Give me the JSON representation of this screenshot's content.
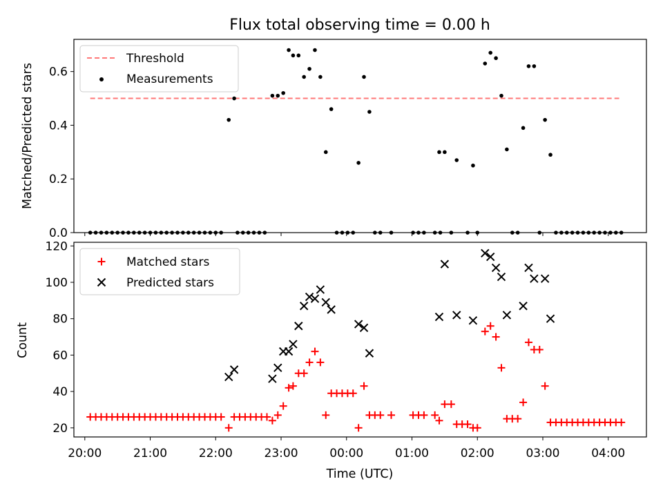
{
  "chart_data": [
    {
      "type": "scatter",
      "title": "Flux total observing time = 0.00 h",
      "xlabel": "",
      "ylabel": "Matched/Predicted stars",
      "xlim": [
        "19:50",
        "04:35"
      ],
      "ylim": [
        0,
        0.72
      ],
      "yticks": [
        "0.0",
        "0.2",
        "0.4",
        "0.6"
      ],
      "grid": false,
      "legend_position": "upper-left",
      "threshold": {
        "name": "Threshold",
        "y": 0.5,
        "x_start": "20:05",
        "x_end": "04:10",
        "color": "#ff7777",
        "style": "dashed"
      },
      "series": [
        {
          "name": "Measurements",
          "color": "#000000",
          "marker": "dot",
          "points": [
            [
              "20:05",
              0
            ],
            [
              "20:10",
              0
            ],
            [
              "20:15",
              0
            ],
            [
              "20:20",
              0
            ],
            [
              "20:25",
              0
            ],
            [
              "20:30",
              0
            ],
            [
              "20:35",
              0
            ],
            [
              "20:40",
              0
            ],
            [
              "20:45",
              0
            ],
            [
              "20:50",
              0
            ],
            [
              "20:55",
              0
            ],
            [
              "21:00",
              0
            ],
            [
              "21:05",
              0
            ],
            [
              "21:10",
              0
            ],
            [
              "21:15",
              0
            ],
            [
              "21:20",
              0
            ],
            [
              "21:25",
              0
            ],
            [
              "21:30",
              0
            ],
            [
              "21:35",
              0
            ],
            [
              "21:40",
              0
            ],
            [
              "21:45",
              0
            ],
            [
              "21:50",
              0
            ],
            [
              "21:55",
              0
            ],
            [
              "22:00",
              0
            ],
            [
              "22:05",
              0
            ],
            [
              "22:12",
              0.42
            ],
            [
              "22:17",
              0.5
            ],
            [
              "22:20",
              0
            ],
            [
              "22:25",
              0
            ],
            [
              "22:30",
              0
            ],
            [
              "22:35",
              0
            ],
            [
              "22:40",
              0
            ],
            [
              "22:45",
              0
            ],
            [
              "22:52",
              0.51
            ],
            [
              "22:57",
              0.51
            ],
            [
              "23:02",
              0.52
            ],
            [
              "23:07",
              0.68
            ],
            [
              "23:11",
              0.66
            ],
            [
              "23:16",
              0.66
            ],
            [
              "23:21",
              0.58
            ],
            [
              "23:26",
              0.61
            ],
            [
              "23:31",
              0.68
            ],
            [
              "23:36",
              0.58
            ],
            [
              "23:41",
              0.3
            ],
            [
              "23:46",
              0.46
            ],
            [
              "23:51",
              0
            ],
            [
              "23:56",
              0
            ],
            [
              "00:01",
              0
            ],
            [
              "00:06",
              0
            ],
            [
              "00:11",
              0.26
            ],
            [
              "00:16",
              0.58
            ],
            [
              "00:21",
              0.45
            ],
            [
              "00:26",
              0
            ],
            [
              "00:31",
              0
            ],
            [
              "00:41",
              0
            ],
            [
              "01:01",
              0
            ],
            [
              "01:06",
              0
            ],
            [
              "01:11",
              0
            ],
            [
              "01:21",
              0
            ],
            [
              "01:26",
              0
            ],
            [
              "01:25",
              0.3
            ],
            [
              "01:30",
              0.3
            ],
            [
              "01:41",
              0.27
            ],
            [
              "01:56",
              0.25
            ],
            [
              "01:36",
              0
            ],
            [
              "01:51",
              0
            ],
            [
              "02:00",
              0
            ],
            [
              "02:07",
              0.63
            ],
            [
              "02:12",
              0.67
            ],
            [
              "02:17",
              0.65
            ],
            [
              "02:22",
              0.51
            ],
            [
              "02:27",
              0.31
            ],
            [
              "02:42",
              0.39
            ],
            [
              "02:47",
              0.62
            ],
            [
              "02:52",
              0.62
            ],
            [
              "03:02",
              0.42
            ],
            [
              "03:07",
              0.29
            ],
            [
              "02:32",
              0
            ],
            [
              "02:37",
              0
            ],
            [
              "02:57",
              0
            ],
            [
              "03:12",
              0
            ],
            [
              "03:17",
              0
            ],
            [
              "03:22",
              0
            ],
            [
              "03:27",
              0
            ],
            [
              "03:32",
              0
            ],
            [
              "03:37",
              0
            ],
            [
              "03:42",
              0
            ],
            [
              "03:47",
              0
            ],
            [
              "03:52",
              0
            ],
            [
              "03:57",
              0
            ],
            [
              "04:02",
              0
            ],
            [
              "04:07",
              0
            ],
            [
              "04:12",
              0
            ]
          ]
        }
      ]
    },
    {
      "type": "scatter",
      "title": "",
      "xlabel": "Time (UTC)",
      "ylabel": "Count",
      "xlim": [
        "19:50",
        "04:35"
      ],
      "ylim": [
        15,
        122
      ],
      "xticks": [
        "20:00",
        "21:00",
        "22:00",
        "23:00",
        "00:00",
        "01:00",
        "02:00",
        "03:00",
        "04:00"
      ],
      "yticks": [
        "20",
        "40",
        "60",
        "80",
        "100",
        "120"
      ],
      "grid": false,
      "legend_position": "upper-left",
      "series": [
        {
          "name": "Matched stars",
          "color": "#ff0000",
          "marker": "plus",
          "points": [
            [
              "20:05",
              26
            ],
            [
              "20:10",
              26
            ],
            [
              "20:15",
              26
            ],
            [
              "20:20",
              26
            ],
            [
              "20:25",
              26
            ],
            [
              "20:30",
              26
            ],
            [
              "20:35",
              26
            ],
            [
              "20:40",
              26
            ],
            [
              "20:45",
              26
            ],
            [
              "20:50",
              26
            ],
            [
              "20:55",
              26
            ],
            [
              "21:00",
              26
            ],
            [
              "21:05",
              26
            ],
            [
              "21:10",
              26
            ],
            [
              "21:15",
              26
            ],
            [
              "21:20",
              26
            ],
            [
              "21:25",
              26
            ],
            [
              "21:30",
              26
            ],
            [
              "21:35",
              26
            ],
            [
              "21:40",
              26
            ],
            [
              "21:45",
              26
            ],
            [
              "21:50",
              26
            ],
            [
              "21:55",
              26
            ],
            [
              "22:00",
              26
            ],
            [
              "22:05",
              26
            ],
            [
              "22:12",
              20
            ],
            [
              "22:17",
              26
            ],
            [
              "22:22",
              26
            ],
            [
              "22:27",
              26
            ],
            [
              "22:32",
              26
            ],
            [
              "22:37",
              26
            ],
            [
              "22:42",
              26
            ],
            [
              "22:47",
              26
            ],
            [
              "22:52",
              24
            ],
            [
              "22:57",
              27
            ],
            [
              "23:02",
              32
            ],
            [
              "23:07",
              42
            ],
            [
              "23:11",
              43
            ],
            [
              "23:16",
              50
            ],
            [
              "23:21",
              50
            ],
            [
              "23:26",
              56
            ],
            [
              "23:31",
              62
            ],
            [
              "23:36",
              56
            ],
            [
              "23:41",
              27
            ],
            [
              "23:46",
              39
            ],
            [
              "23:51",
              39
            ],
            [
              "23:56",
              39
            ],
            [
              "00:01",
              39
            ],
            [
              "00:06",
              39
            ],
            [
              "00:11",
              20
            ],
            [
              "00:16",
              43
            ],
            [
              "00:21",
              27
            ],
            [
              "00:26",
              27
            ],
            [
              "00:31",
              27
            ],
            [
              "00:41",
              27
            ],
            [
              "01:01",
              27
            ],
            [
              "01:06",
              27
            ],
            [
              "01:11",
              27
            ],
            [
              "01:21",
              27
            ],
            [
              "01:25",
              24
            ],
            [
              "01:30",
              33
            ],
            [
              "01:36",
              33
            ],
            [
              "01:41",
              22
            ],
            [
              "01:46",
              22
            ],
            [
              "01:51",
              22
            ],
            [
              "01:56",
              20
            ],
            [
              "02:00",
              20
            ],
            [
              "02:07",
              73
            ],
            [
              "02:12",
              76
            ],
            [
              "02:17",
              70
            ],
            [
              "02:22",
              53
            ],
            [
              "02:27",
              25
            ],
            [
              "02:32",
              25
            ],
            [
              "02:37",
              25
            ],
            [
              "02:42",
              34
            ],
            [
              "02:47",
              67
            ],
            [
              "02:52",
              63
            ],
            [
              "02:57",
              63
            ],
            [
              "03:02",
              43
            ],
            [
              "03:07",
              23
            ],
            [
              "03:12",
              23
            ],
            [
              "03:17",
              23
            ],
            [
              "03:22",
              23
            ],
            [
              "03:27",
              23
            ],
            [
              "03:32",
              23
            ],
            [
              "03:37",
              23
            ],
            [
              "03:42",
              23
            ],
            [
              "03:47",
              23
            ],
            [
              "03:52",
              23
            ],
            [
              "03:57",
              23
            ],
            [
              "04:02",
              23
            ],
            [
              "04:07",
              23
            ],
            [
              "04:12",
              23
            ]
          ]
        },
        {
          "name": "Predicted stars",
          "color": "#000000",
          "marker": "x",
          "points": [
            [
              "22:12",
              48
            ],
            [
              "22:17",
              52
            ],
            [
              "22:52",
              47
            ],
            [
              "22:57",
              53
            ],
            [
              "23:02",
              62
            ],
            [
              "23:07",
              62
            ],
            [
              "23:11",
              66
            ],
            [
              "23:16",
              76
            ],
            [
              "23:21",
              87
            ],
            [
              "23:26",
              92
            ],
            [
              "23:31",
              91
            ],
            [
              "23:36",
              96
            ],
            [
              "23:41",
              89
            ],
            [
              "23:46",
              85
            ],
            [
              "00:11",
              77
            ],
            [
              "00:16",
              75
            ],
            [
              "00:21",
              61
            ],
            [
              "01:25",
              81
            ],
            [
              "01:30",
              110
            ],
            [
              "01:41",
              82
            ],
            [
              "01:56",
              79
            ],
            [
              "02:07",
              116
            ],
            [
              "02:12",
              114
            ],
            [
              "02:17",
              108
            ],
            [
              "02:22",
              103
            ],
            [
              "02:27",
              82
            ],
            [
              "02:42",
              87
            ],
            [
              "02:47",
              108
            ],
            [
              "02:52",
              102
            ],
            [
              "03:02",
              102
            ],
            [
              "03:07",
              80
            ]
          ]
        }
      ]
    }
  ]
}
